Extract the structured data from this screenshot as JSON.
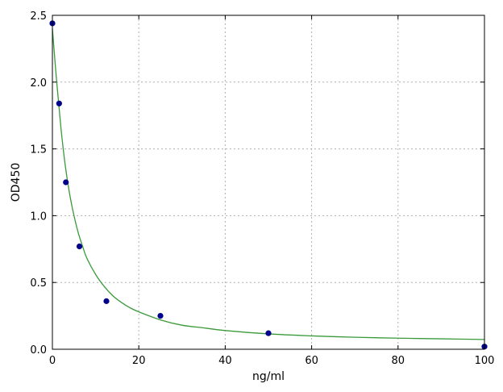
{
  "chart_data": {
    "type": "scatter",
    "title": "",
    "xlabel": "ng/ml",
    "ylabel": "OD450",
    "xlim": [
      0,
      100
    ],
    "ylim": [
      0,
      2.5
    ],
    "x_ticks": [
      "0",
      "20",
      "40",
      "60",
      "80",
      "100"
    ],
    "y_ticks": [
      "0.0",
      "0.5",
      "1.0",
      "1.5",
      "2.0",
      "2.5"
    ],
    "grid": true,
    "legend": "none",
    "series": [
      {
        "kind": "points",
        "x": [
          0,
          1.56,
          3.12,
          6.25,
          12.5,
          25,
          50,
          100
        ],
        "y": [
          2.44,
          1.84,
          1.25,
          0.77,
          0.36,
          0.25,
          0.12,
          0.02
        ]
      },
      {
        "kind": "fitted-curve",
        "x": [
          0,
          1,
          2,
          3,
          4,
          5,
          6,
          7,
          8,
          10,
          12,
          14,
          16,
          18,
          20,
          25,
          30,
          35,
          40,
          50,
          60,
          70,
          80,
          90,
          100
        ],
        "y": [
          2.4,
          2.0,
          1.65,
          1.37,
          1.16,
          1.0,
          0.87,
          0.77,
          0.68,
          0.56,
          0.47,
          0.4,
          0.35,
          0.31,
          0.28,
          0.22,
          0.18,
          0.16,
          0.14,
          0.115,
          0.1,
          0.09,
          0.083,
          0.078,
          0.073
        ]
      }
    ],
    "colors": {
      "points": "#00008b",
      "curve": "#3a9a3a",
      "grid": "#b0b0b0",
      "axes": "#000000"
    }
  }
}
